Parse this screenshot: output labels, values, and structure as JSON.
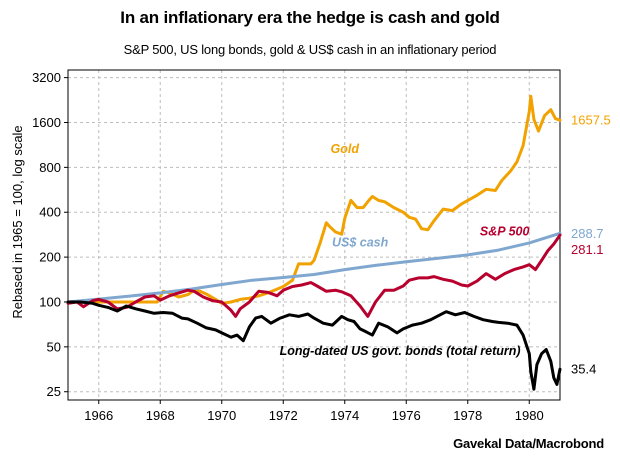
{
  "chart_data": {
    "type": "line",
    "title": "In an inflationary era the hedge is cash and gold",
    "subtitle": "S&P 500, US long bonds, gold & US$ cash in an inflationary period",
    "ylabel": "Rebased in 1965 = 100, log scale",
    "xlabel": "",
    "source": "Gavekal Data/Macrobond",
    "y_scale": "log2",
    "ylim": [
      22,
      3600
    ],
    "xlim": [
      1965.0,
      1981.0
    ],
    "y_ticks": [
      25,
      50,
      100,
      200,
      400,
      800,
      1600,
      3200
    ],
    "x_ticks": [
      1966,
      1968,
      1970,
      1972,
      1974,
      1976,
      1978,
      1980
    ],
    "grid": true,
    "legend": "inline labels",
    "series": [
      {
        "name": "Gold",
        "color": "#f2a200",
        "end_label": "1657.5",
        "points": [
          [
            1965.0,
            100
          ],
          [
            1965.5,
            100
          ],
          [
            1966.0,
            100
          ],
          [
            1966.5,
            100
          ],
          [
            1967.0,
            100
          ],
          [
            1967.5,
            100
          ],
          [
            1967.9,
            100
          ],
          [
            1968.1,
            118
          ],
          [
            1968.3,
            115
          ],
          [
            1968.6,
            108
          ],
          [
            1968.9,
            112
          ],
          [
            1969.1,
            120
          ],
          [
            1969.3,
            118
          ],
          [
            1969.5,
            113
          ],
          [
            1969.8,
            104
          ],
          [
            1970.0,
            98
          ],
          [
            1970.3,
            100
          ],
          [
            1970.6,
            104
          ],
          [
            1970.9,
            106
          ],
          [
            1971.2,
            110
          ],
          [
            1971.5,
            115
          ],
          [
            1971.8,
            122
          ],
          [
            1972.0,
            127
          ],
          [
            1972.3,
            140
          ],
          [
            1972.5,
            180
          ],
          [
            1972.7,
            180
          ],
          [
            1972.9,
            180
          ],
          [
            1973.0,
            190
          ],
          [
            1973.2,
            250
          ],
          [
            1973.4,
            340
          ],
          [
            1973.5,
            322
          ],
          [
            1973.7,
            295
          ],
          [
            1973.9,
            285
          ],
          [
            1974.0,
            365
          ],
          [
            1974.2,
            480
          ],
          [
            1974.4,
            430
          ],
          [
            1974.6,
            430
          ],
          [
            1974.8,
            485
          ],
          [
            1974.9,
            510
          ],
          [
            1975.1,
            480
          ],
          [
            1975.3,
            470
          ],
          [
            1975.6,
            430
          ],
          [
            1975.9,
            400
          ],
          [
            1976.1,
            370
          ],
          [
            1976.3,
            360
          ],
          [
            1976.5,
            310
          ],
          [
            1976.7,
            305
          ],
          [
            1976.9,
            350
          ],
          [
            1977.2,
            420
          ],
          [
            1977.5,
            410
          ],
          [
            1977.8,
            455
          ],
          [
            1978.0,
            480
          ],
          [
            1978.3,
            520
          ],
          [
            1978.6,
            570
          ],
          [
            1978.9,
            560
          ],
          [
            1979.1,
            650
          ],
          [
            1979.4,
            760
          ],
          [
            1979.6,
            870
          ],
          [
            1979.8,
            1120
          ],
          [
            1980.0,
            1900
          ],
          [
            1980.05,
            2400
          ],
          [
            1980.15,
            1680
          ],
          [
            1980.3,
            1400
          ],
          [
            1980.5,
            1780
          ],
          [
            1980.7,
            1950
          ],
          [
            1980.85,
            1700
          ],
          [
            1981.0,
            1657.5
          ]
        ]
      },
      {
        "name": "US$ cash",
        "color": "#7fa7cf",
        "end_label": "288.7",
        "points": [
          [
            1965.0,
            100
          ],
          [
            1966.0,
            104.5
          ],
          [
            1967.0,
            109.5
          ],
          [
            1968.0,
            115
          ],
          [
            1969.0,
            122
          ],
          [
            1970.0,
            131
          ],
          [
            1971.0,
            140
          ],
          [
            1972.0,
            146
          ],
          [
            1973.0,
            153
          ],
          [
            1974.0,
            165
          ],
          [
            1975.0,
            176
          ],
          [
            1976.0,
            186
          ],
          [
            1977.0,
            196
          ],
          [
            1978.0,
            207
          ],
          [
            1979.0,
            223
          ],
          [
            1980.0,
            249
          ],
          [
            1981.0,
            288.7
          ]
        ]
      },
      {
        "name": "S&P 500",
        "color": "#b8002e",
        "end_label": "281.1",
        "points": [
          [
            1965.0,
            98
          ],
          [
            1965.3,
            100
          ],
          [
            1965.5,
            93
          ],
          [
            1965.8,
            102
          ],
          [
            1966.0,
            104
          ],
          [
            1966.3,
            100
          ],
          [
            1966.6,
            90
          ],
          [
            1966.9,
            92
          ],
          [
            1967.2,
            100
          ],
          [
            1967.5,
            108
          ],
          [
            1967.8,
            110
          ],
          [
            1968.0,
            103
          ],
          [
            1968.3,
            110
          ],
          [
            1968.6,
            115
          ],
          [
            1968.9,
            120
          ],
          [
            1969.1,
            118
          ],
          [
            1969.4,
            108
          ],
          [
            1969.7,
            102
          ],
          [
            1970.0,
            100
          ],
          [
            1970.3,
            88
          ],
          [
            1970.45,
            80
          ],
          [
            1970.6,
            90
          ],
          [
            1970.9,
            100
          ],
          [
            1971.2,
            118
          ],
          [
            1971.5,
            116
          ],
          [
            1971.8,
            110
          ],
          [
            1972.0,
            120
          ],
          [
            1972.3,
            127
          ],
          [
            1972.6,
            130
          ],
          [
            1972.9,
            135
          ],
          [
            1973.1,
            128
          ],
          [
            1973.4,
            118
          ],
          [
            1973.7,
            120
          ],
          [
            1973.9,
            117
          ],
          [
            1974.2,
            110
          ],
          [
            1974.5,
            94
          ],
          [
            1974.75,
            80
          ],
          [
            1975.0,
            100
          ],
          [
            1975.3,
            120
          ],
          [
            1975.6,
            120
          ],
          [
            1975.9,
            128
          ],
          [
            1976.1,
            140
          ],
          [
            1976.4,
            145
          ],
          [
            1976.7,
            145
          ],
          [
            1976.9,
            148
          ],
          [
            1977.2,
            142
          ],
          [
            1977.5,
            138
          ],
          [
            1977.8,
            130
          ],
          [
            1978.0,
            128
          ],
          [
            1978.3,
            138
          ],
          [
            1978.6,
            155
          ],
          [
            1978.9,
            142
          ],
          [
            1979.2,
            155
          ],
          [
            1979.5,
            165
          ],
          [
            1979.8,
            172
          ],
          [
            1980.0,
            178
          ],
          [
            1980.2,
            165
          ],
          [
            1980.4,
            190
          ],
          [
            1980.6,
            220
          ],
          [
            1980.8,
            245
          ],
          [
            1981.0,
            281.1
          ]
        ]
      },
      {
        "name": "Long-dated US govt. bonds (total return)",
        "color": "#000000",
        "end_label": "35.4",
        "points": [
          [
            1965.0,
            100
          ],
          [
            1965.4,
            100
          ],
          [
            1965.8,
            98
          ],
          [
            1966.0,
            95
          ],
          [
            1966.3,
            92
          ],
          [
            1966.6,
            87
          ],
          [
            1966.9,
            94
          ],
          [
            1967.2,
            90
          ],
          [
            1967.5,
            87
          ],
          [
            1967.8,
            84
          ],
          [
            1968.1,
            85
          ],
          [
            1968.4,
            84
          ],
          [
            1968.7,
            78
          ],
          [
            1968.9,
            77
          ],
          [
            1969.2,
            72
          ],
          [
            1969.5,
            67
          ],
          [
            1969.8,
            65
          ],
          [
            1970.0,
            62
          ],
          [
            1970.3,
            58
          ],
          [
            1970.5,
            60
          ],
          [
            1970.7,
            55
          ],
          [
            1970.9,
            68
          ],
          [
            1971.1,
            78
          ],
          [
            1971.3,
            80
          ],
          [
            1971.6,
            72
          ],
          [
            1971.9,
            78
          ],
          [
            1972.2,
            82
          ],
          [
            1972.5,
            80
          ],
          [
            1972.8,
            83
          ],
          [
            1973.0,
            78
          ],
          [
            1973.3,
            72
          ],
          [
            1973.6,
            70
          ],
          [
            1973.9,
            80
          ],
          [
            1974.1,
            76
          ],
          [
            1974.3,
            74
          ],
          [
            1974.5,
            66
          ],
          [
            1974.7,
            63
          ],
          [
            1974.9,
            60
          ],
          [
            1975.1,
            72
          ],
          [
            1975.4,
            68
          ],
          [
            1975.7,
            62
          ],
          [
            1975.9,
            66
          ],
          [
            1976.2,
            70
          ],
          [
            1976.5,
            72
          ],
          [
            1976.8,
            76
          ],
          [
            1977.0,
            80
          ],
          [
            1977.3,
            86
          ],
          [
            1977.6,
            82
          ],
          [
            1977.9,
            85
          ],
          [
            1978.2,
            80
          ],
          [
            1978.5,
            76
          ],
          [
            1978.8,
            74
          ],
          [
            1979.0,
            73
          ],
          [
            1979.3,
            72
          ],
          [
            1979.6,
            70
          ],
          [
            1979.8,
            60
          ],
          [
            1980.0,
            45
          ],
          [
            1980.05,
            34
          ],
          [
            1980.15,
            26
          ],
          [
            1980.25,
            38
          ],
          [
            1980.4,
            45
          ],
          [
            1980.55,
            48
          ],
          [
            1980.7,
            40
          ],
          [
            1980.8,
            31
          ],
          [
            1980.9,
            28
          ],
          [
            1981.0,
            35.4
          ]
        ]
      }
    ],
    "annotations": [
      {
        "series": "Gold",
        "text": "Gold",
        "at_x": 1974.0,
        "at_y": 1000
      },
      {
        "series": "US$ cash",
        "text": "US$ cash",
        "at_x": 1974.5,
        "at_y": 235
      },
      {
        "series": "S&P 500",
        "text": "S&P 500",
        "at_x": 1979.2,
        "at_y": 280
      },
      {
        "series": "Long-dated US govt. bonds (total return)",
        "text": "Long-dated US govt. bonds (total return)",
        "at_x": 1975.8,
        "at_y": 44
      }
    ]
  }
}
